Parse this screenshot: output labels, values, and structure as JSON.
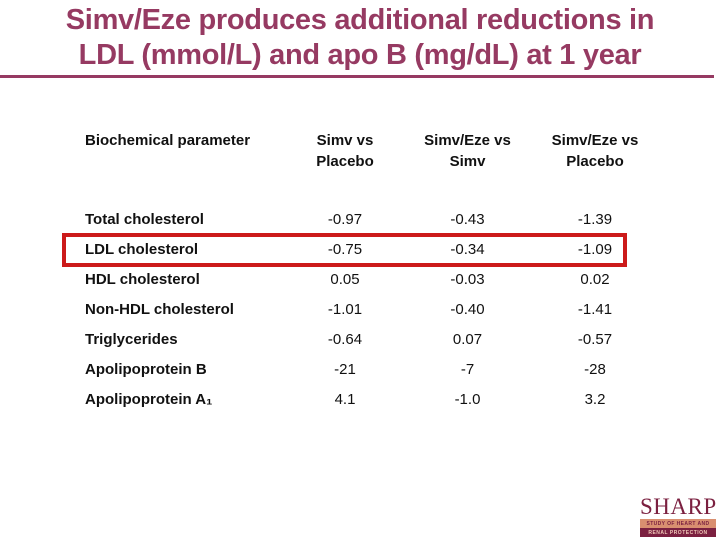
{
  "slide": {
    "title_line1": "Simv/Eze produces additional reductions in",
    "title_line2": "LDL (mmol/L) and apo B (mg/dL) at 1 year"
  },
  "table": {
    "headers": [
      "Biochemical parameter",
      "Simv vs\nPlacebo",
      "Simv/Eze vs\nSimv",
      "Simv/Eze vs\nPlacebo"
    ],
    "rows": [
      {
        "label": "Total cholesterol",
        "values": [
          "-0.97",
          "-0.43",
          "-1.39"
        ],
        "highlighted": false
      },
      {
        "label": "LDL cholesterol",
        "values": [
          "-0.75",
          "-0.34",
          "-1.09"
        ],
        "highlighted": true
      },
      {
        "label": "HDL cholesterol",
        "values": [
          "0.05",
          "-0.03",
          "0.02"
        ],
        "highlighted": false
      },
      {
        "label": "Non-HDL cholesterol",
        "values": [
          "-1.01",
          "-0.40",
          "-1.41"
        ],
        "highlighted": false
      },
      {
        "label": "Triglycerides",
        "values": [
          "-0.64",
          "0.07",
          "-0.57"
        ],
        "highlighted": false
      },
      {
        "label": "Apolipoprotein B",
        "values": [
          "-21",
          "-7",
          "-28"
        ],
        "highlighted": false
      },
      {
        "label": "Apolipoprotein A₁",
        "values": [
          "4.1",
          "-1.0",
          "3.2"
        ],
        "highlighted": false
      }
    ]
  },
  "logo": {
    "word": "SHARP",
    "tagline_line1": "STUDY OF HEART AND",
    "tagline_line2": "RENAL PROTECTION"
  },
  "colors": {
    "title_plum": "#963a62",
    "highlight_red": "#cc1a1a",
    "logo_maroon": "#7b2040",
    "logo_salmon": "#d98f70"
  },
  "chart_data": {
    "type": "table",
    "title": "Simv/Eze produces additional reductions in LDL (mmol/L) and apo B (mg/dL) at 1 year",
    "columns": [
      "Biochemical parameter",
      "Simv vs Placebo",
      "Simv/Eze vs Simv",
      "Simv/Eze vs Placebo"
    ],
    "rows": [
      [
        "Total cholesterol",
        -0.97,
        -0.43,
        -1.39
      ],
      [
        "LDL cholesterol",
        -0.75,
        -0.34,
        -1.09
      ],
      [
        "HDL cholesterol",
        0.05,
        -0.03,
        0.02
      ],
      [
        "Non-HDL cholesterol",
        -1.01,
        -0.4,
        -1.41
      ],
      [
        "Triglycerides",
        -0.64,
        0.07,
        -0.57
      ],
      [
        "Apolipoprotein B",
        -21,
        -7,
        -28
      ],
      [
        "Apolipoprotein A1",
        4.1,
        -1.0,
        3.2
      ]
    ],
    "highlighted_row": "LDL cholesterol"
  }
}
